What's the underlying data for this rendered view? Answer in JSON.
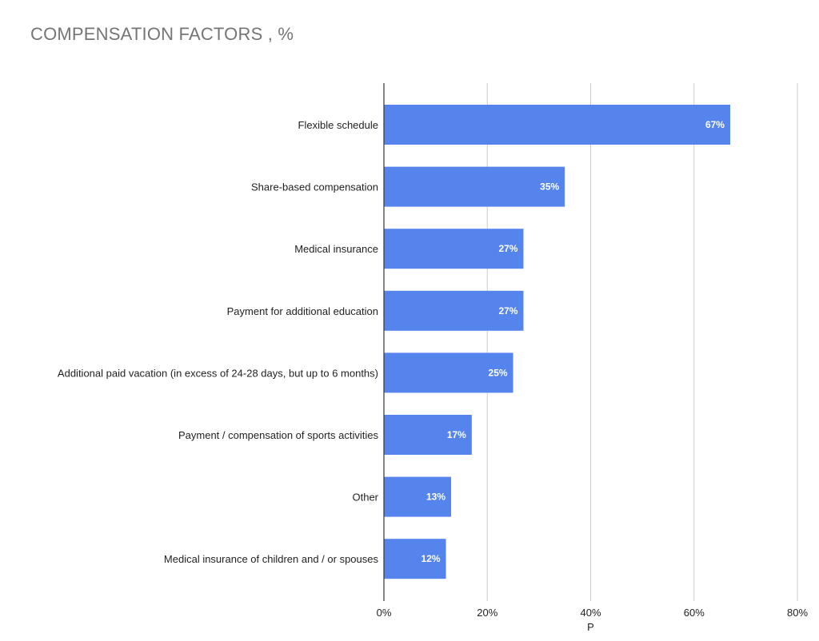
{
  "chart_data": {
    "type": "bar",
    "orientation": "horizontal",
    "title": "COMPENSATION FACTORS , %",
    "xlabel": "P",
    "ylabel": "",
    "categories": [
      "Flexible schedule",
      "Share-based compensation",
      "Medical insurance",
      "Payment for additional education",
      "Additional paid vacation (in excess of 24-28 days, but up to 6 months)",
      "Payment / compensation of sports activities",
      "Other",
      "Medical insurance of children and / or spouses"
    ],
    "values": [
      67,
      35,
      27,
      27,
      25,
      17,
      13,
      12
    ],
    "data_labels": [
      "67%",
      "35%",
      "27%",
      "27%",
      "25%",
      "17%",
      "13%",
      "12%"
    ],
    "xlim": [
      0,
      80
    ],
    "xticks": [
      0,
      20,
      40,
      60,
      80
    ],
    "xtick_labels": [
      "0%",
      "20%",
      "40%",
      "60%",
      "80%"
    ],
    "grid": "vertical",
    "legend": "none",
    "colors": {
      "bar": "#5585EC",
      "grid": "#cccccc",
      "axis": "#333333",
      "title": "#757575"
    }
  }
}
